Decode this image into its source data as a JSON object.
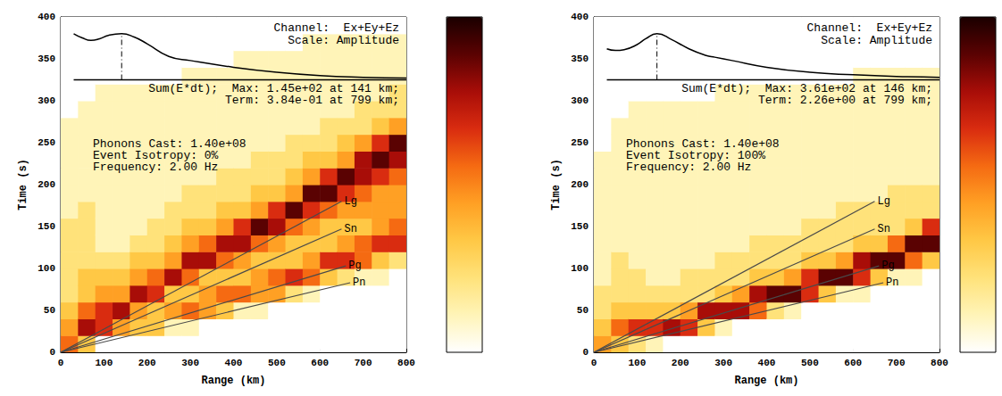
{
  "chart_data": [
    {
      "type": "heatmap",
      "x_label": "Range (km)",
      "y_label": "Time (s)",
      "xlim": [
        0,
        800
      ],
      "xticks": [
        0,
        100,
        200,
        300,
        400,
        500,
        600,
        700,
        800
      ],
      "ylim": [
        0,
        400
      ],
      "yticks": [
        0,
        50,
        100,
        150,
        200,
        250,
        300,
        350,
        400
      ],
      "heatmap": {
        "x_edges": [
          0,
          40,
          80,
          120,
          160,
          200,
          240,
          280,
          320,
          360,
          400,
          440,
          480,
          520,
          560,
          600,
          640,
          680,
          720,
          760,
          800
        ],
        "y_edges": [
          0,
          20,
          40,
          60,
          80,
          100,
          120,
          140,
          160,
          180,
          200,
          220,
          240,
          260,
          280,
          300,
          320,
          340,
          360,
          380,
          400
        ],
        "cells": [
          [
            5,
            4,
            3,
            2,
            2,
            2,
            2,
            2,
            1,
            1,
            1,
            1,
            1,
            1,
            0,
            0,
            0,
            0,
            0,
            0
          ],
          [
            3,
            7,
            5,
            3,
            3,
            2,
            2,
            2,
            2,
            1,
            1,
            1,
            1,
            1,
            1,
            0,
            0,
            0,
            0,
            0
          ],
          [
            0,
            6,
            6,
            4,
            3,
            2,
            1,
            1,
            1,
            1,
            1,
            1,
            1,
            1,
            1,
            1,
            0,
            0,
            0,
            0
          ],
          [
            0,
            4,
            7,
            4,
            3,
            2,
            1,
            1,
            1,
            1,
            1,
            1,
            1,
            1,
            1,
            1,
            0,
            0,
            0,
            0
          ],
          [
            0,
            3,
            4,
            7,
            4,
            3,
            2,
            1,
            1,
            1,
            1,
            1,
            1,
            1,
            1,
            1,
            0,
            0,
            0,
            0
          ],
          [
            0,
            3,
            3,
            6,
            5,
            3,
            2,
            2,
            1,
            1,
            1,
            1,
            1,
            1,
            1,
            1,
            0,
            0,
            0,
            0
          ],
          [
            0,
            1,
            4,
            3,
            7,
            4,
            3,
            2,
            2,
            1,
            1,
            1,
            1,
            1,
            1,
            1,
            0,
            0,
            0,
            0
          ],
          [
            0,
            1,
            5,
            3,
            5,
            7,
            4,
            3,
            2,
            2,
            1,
            1,
            1,
            1,
            1,
            1,
            1,
            0,
            0,
            0
          ],
          [
            0,
            0,
            4,
            4,
            3,
            7,
            5,
            3,
            2,
            2,
            1,
            1,
            1,
            1,
            1,
            1,
            1,
            0,
            0,
            0
          ],
          [
            0,
            0,
            3,
            5,
            3,
            5,
            7,
            4,
            3,
            2,
            2,
            1,
            1,
            1,
            1,
            1,
            1,
            0,
            0,
            0
          ],
          [
            0,
            0,
            1,
            5,
            3,
            4,
            7,
            6,
            3,
            2,
            2,
            1,
            1,
            1,
            1,
            1,
            1,
            1,
            0,
            0
          ],
          [
            0,
            0,
            1,
            4,
            4,
            3,
            5,
            8,
            4,
            3,
            2,
            2,
            1,
            1,
            1,
            1,
            1,
            1,
            0,
            0
          ],
          [
            0,
            0,
            0,
            4,
            5,
            3,
            4,
            7,
            6,
            3,
            2,
            2,
            1,
            1,
            1,
            1,
            1,
            1,
            0,
            0
          ],
          [
            0,
            0,
            0,
            2,
            6,
            3,
            3,
            5,
            8,
            4,
            3,
            2,
            2,
            1,
            1,
            1,
            1,
            1,
            0,
            0
          ],
          [
            0,
            0,
            0,
            1,
            5,
            4,
            3,
            4,
            6,
            8,
            4,
            3,
            2,
            1,
            1,
            1,
            1,
            1,
            1,
            0
          ],
          [
            0,
            0,
            0,
            0,
            3,
            6,
            3,
            3,
            5,
            8,
            6,
            3,
            2,
            2,
            1,
            1,
            1,
            1,
            1,
            0
          ],
          [
            0,
            0,
            0,
            0,
            2,
            6,
            4,
            3,
            4,
            6,
            8,
            4,
            3,
            2,
            1,
            1,
            1,
            1,
            1,
            0
          ],
          [
            0,
            0,
            0,
            0,
            1,
            5,
            5,
            3,
            4,
            5,
            7,
            7,
            4,
            2,
            2,
            1,
            1,
            1,
            1,
            0
          ],
          [
            0,
            0,
            0,
            0,
            1,
            3,
            6,
            4,
            4,
            4,
            6,
            8,
            6,
            3,
            2,
            1,
            1,
            1,
            1,
            0
          ],
          [
            0,
            0,
            0,
            0,
            0,
            2,
            6,
            5,
            4,
            4,
            5,
            7,
            8,
            4,
            2,
            2,
            1,
            1,
            1,
            0
          ]
        ]
      },
      "colorbar": {
        "range": [
          0,
          9
        ]
      },
      "phases": [
        {
          "name": "Lg",
          "x": [
            0,
            650
          ],
          "y": [
            0,
            180
          ]
        },
        {
          "name": "Sn",
          "x": [
            0,
            650
          ],
          "y": [
            0,
            147
          ]
        },
        {
          "name": "Pg",
          "x": [
            0,
            660
          ],
          "y": [
            0,
            103
          ]
        },
        {
          "name": "Pn",
          "x": [
            0,
            670
          ],
          "y": [
            0,
            83
          ]
        }
      ],
      "inset": {
        "x": [
          30,
          50,
          70,
          90,
          110,
          141,
          170,
          200,
          250,
          300,
          400,
          500,
          600,
          700,
          800
        ],
        "y": [
          380,
          375,
          372,
          374,
          378,
          380,
          376,
          368,
          353,
          348,
          340,
          334,
          330,
          328,
          327
        ],
        "baseline": 325,
        "peak_x": 141
      },
      "annotations": {
        "header": [
          "Channel:  Ex+Ey+Ez",
          "Scale: Amplitude"
        ],
        "inset_labels": [
          "Sum(E*dt);  Max: 1.45e+02 at 141 km;",
          "Term: 3.84e-01 at 799 km;"
        ],
        "notes": [
          "Phonons Cast: 1.40e+08",
          "Event Isotropy: 0%",
          "Frequency: 2.00 Hz"
        ]
      }
    },
    {
      "type": "heatmap",
      "x_label": "Range (km)",
      "y_label": "Time (s)",
      "xlim": [
        0,
        800
      ],
      "xticks": [
        0,
        100,
        200,
        300,
        400,
        500,
        600,
        700,
        800
      ],
      "ylim": [
        0,
        400
      ],
      "yticks": [
        0,
        50,
        100,
        150,
        200,
        250,
        300,
        350,
        400
      ],
      "heatmap": {
        "x_edges": [
          0,
          40,
          80,
          120,
          160,
          200,
          240,
          280,
          320,
          360,
          400,
          440,
          480,
          520,
          560,
          600,
          640,
          680,
          720,
          760,
          800
        ],
        "y_edges": [
          0,
          20,
          40,
          60,
          80,
          100,
          120,
          140,
          160,
          180,
          200,
          220,
          240,
          260,
          280,
          300,
          320,
          340,
          360,
          380,
          400
        ],
        "cells": [
          [
            4,
            3,
            2,
            2,
            1,
            1,
            1,
            1,
            1,
            1,
            1,
            1,
            0,
            0,
            0,
            0,
            0,
            0,
            0,
            0
          ],
          [
            3,
            5,
            3,
            2,
            2,
            2,
            1,
            1,
            1,
            1,
            1,
            1,
            1,
            1,
            0,
            0,
            0,
            0,
            0,
            0
          ],
          [
            2,
            6,
            3,
            2,
            2,
            1,
            1,
            1,
            1,
            1,
            1,
            1,
            1,
            1,
            1,
            0,
            0,
            0,
            0,
            0
          ],
          [
            1,
            6,
            3,
            2,
            1,
            1,
            1,
            1,
            1,
            1,
            1,
            1,
            1,
            1,
            1,
            0,
            0,
            0,
            0,
            0
          ],
          [
            0,
            7,
            3,
            2,
            1,
            1,
            1,
            1,
            1,
            1,
            1,
            1,
            1,
            1,
            1,
            0,
            0,
            0,
            0,
            0
          ],
          [
            0,
            6,
            4,
            2,
            2,
            1,
            1,
            1,
            1,
            1,
            1,
            1,
            1,
            1,
            1,
            0,
            0,
            0,
            0,
            0
          ],
          [
            0,
            3,
            7,
            2,
            2,
            1,
            1,
            1,
            1,
            1,
            1,
            1,
            1,
            1,
            1,
            0,
            0,
            0,
            0,
            0
          ],
          [
            0,
            1,
            7,
            3,
            2,
            2,
            1,
            1,
            1,
            1,
            1,
            1,
            1,
            1,
            1,
            1,
            0,
            0,
            0,
            0
          ],
          [
            0,
            0,
            7,
            4,
            2,
            2,
            1,
            1,
            1,
            1,
            1,
            1,
            1,
            1,
            1,
            1,
            0,
            0,
            0,
            0
          ],
          [
            0,
            0,
            5,
            7,
            3,
            2,
            2,
            1,
            1,
            1,
            1,
            1,
            1,
            1,
            1,
            1,
            0,
            0,
            0,
            0
          ],
          [
            0,
            0,
            2,
            8,
            3,
            2,
            2,
            1,
            1,
            1,
            1,
            1,
            1,
            1,
            1,
            1,
            0,
            0,
            0,
            0
          ],
          [
            0,
            0,
            1,
            8,
            4,
            2,
            2,
            1,
            1,
            1,
            1,
            1,
            1,
            1,
            1,
            1,
            0,
            0,
            0,
            0
          ],
          [
            0,
            0,
            0,
            6,
            6,
            3,
            2,
            2,
            1,
            1,
            1,
            1,
            1,
            1,
            1,
            1,
            0,
            0,
            0,
            0
          ],
          [
            0,
            0,
            0,
            3,
            8,
            3,
            2,
            2,
            1,
            1,
            1,
            1,
            1,
            1,
            1,
            1,
            0,
            0,
            0,
            0
          ],
          [
            0,
            0,
            0,
            1,
            8,
            4,
            2,
            2,
            2,
            1,
            1,
            1,
            1,
            1,
            1,
            1,
            0,
            0,
            0,
            0
          ],
          [
            0,
            0,
            0,
            1,
            6,
            7,
            3,
            2,
            2,
            1,
            1,
            1,
            1,
            1,
            1,
            1,
            1,
            0,
            0,
            0
          ],
          [
            0,
            0,
            0,
            0,
            3,
            8,
            3,
            2,
            2,
            1,
            1,
            1,
            1,
            1,
            1,
            1,
            1,
            0,
            0,
            0
          ],
          [
            0,
            0,
            0,
            0,
            1,
            8,
            5,
            2,
            2,
            2,
            1,
            1,
            1,
            1,
            1,
            1,
            1,
            0,
            0,
            0
          ],
          [
            0,
            0,
            0,
            0,
            1,
            5,
            8,
            3,
            2,
            2,
            1,
            1,
            1,
            1,
            1,
            1,
            1,
            0,
            0,
            0
          ],
          [
            0,
            0,
            0,
            0,
            0,
            3,
            8,
            6,
            2,
            2,
            1,
            1,
            1,
            1,
            1,
            1,
            1,
            0,
            0,
            0
          ]
        ]
      },
      "colorbar": {
        "range": [
          0,
          9
        ]
      },
      "phases": [
        {
          "name": "Lg",
          "x": [
            0,
            650
          ],
          "y": [
            0,
            180
          ]
        },
        {
          "name": "Sn",
          "x": [
            0,
            650
          ],
          "y": [
            0,
            147
          ]
        },
        {
          "name": "Pg",
          "x": [
            0,
            660
          ],
          "y": [
            0,
            103
          ]
        },
        {
          "name": "Pn",
          "x": [
            0,
            670
          ],
          "y": [
            0,
            83
          ]
        }
      ],
      "inset": {
        "x": [
          30,
          50,
          70,
          100,
          120,
          146,
          180,
          220,
          260,
          280,
          320,
          400,
          500,
          600,
          700,
          800
        ],
        "y": [
          362,
          360,
          361,
          367,
          374,
          380,
          373,
          362,
          354,
          352,
          348,
          340,
          334,
          331,
          329,
          328
        ],
        "baseline": 325,
        "peak_x": 146
      },
      "annotations": {
        "header": [
          "Channel:  Ex+Ey+Ez",
          "Scale: Amplitude"
        ],
        "inset_labels": [
          "Sum(E*dt);  Max: 3.61e+02 at 146 km;",
          "Term: 2.26e+00 at 799 km;"
        ],
        "notes": [
          "Phonons Cast: 1.40e+08",
          "Event Isotropy: 100%",
          "Frequency: 2.00 Hz"
        ]
      }
    }
  ]
}
